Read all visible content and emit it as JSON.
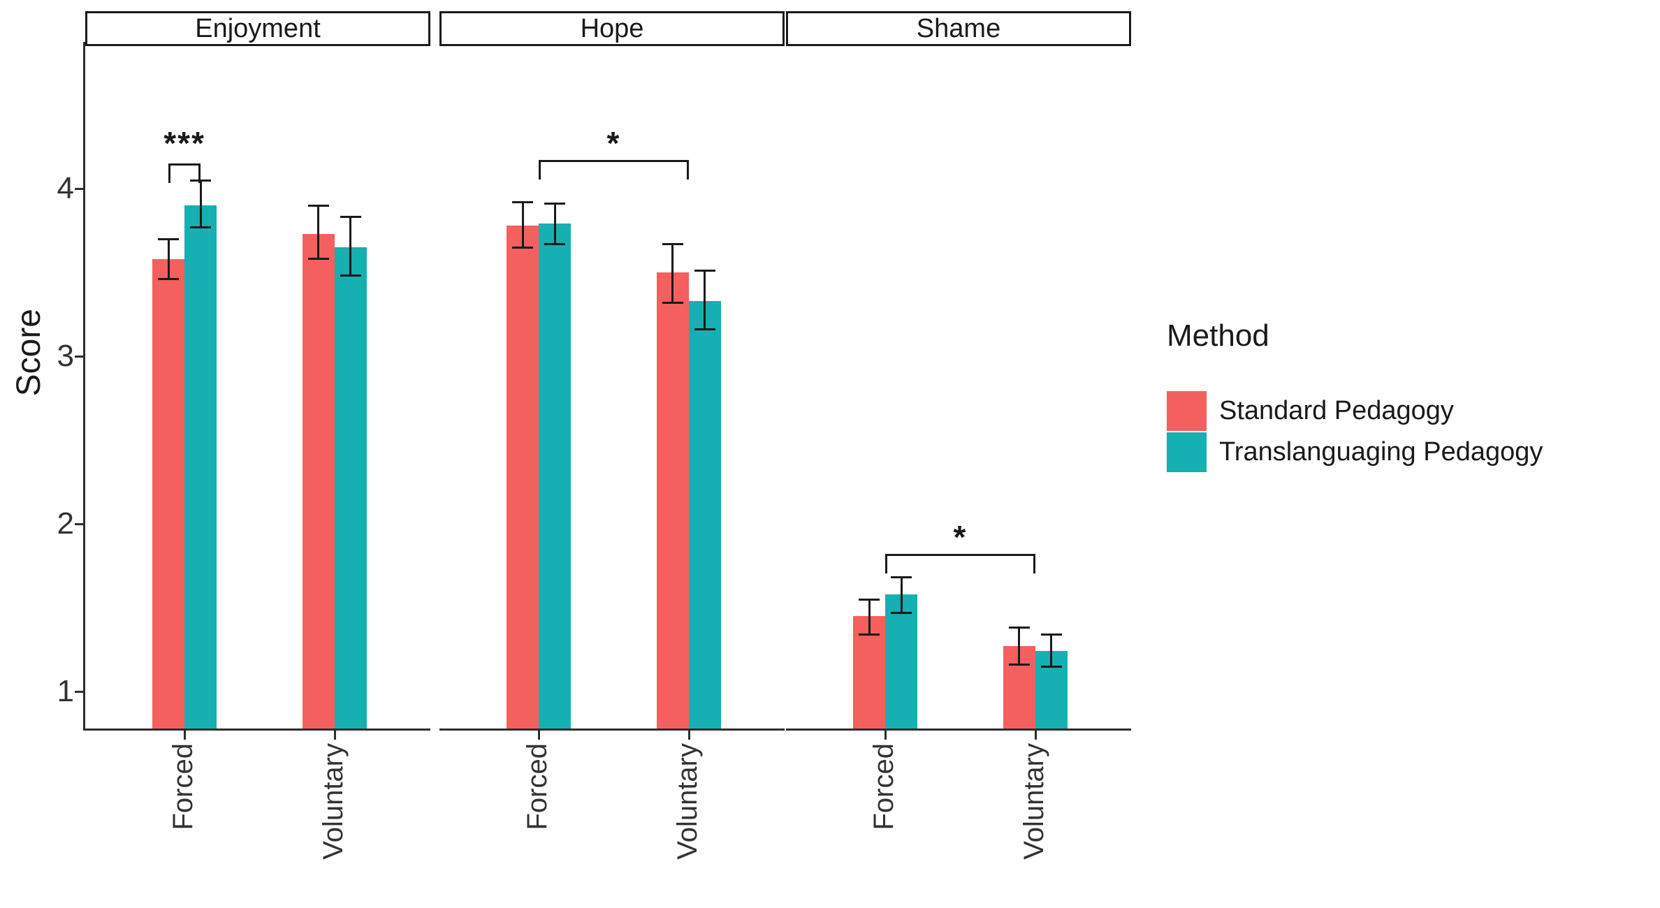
{
  "chart_data": {
    "type": "bar",
    "title": "",
    "ylabel": "Score",
    "xlabel": "",
    "facets": [
      "Enjoyment",
      "Hope",
      "Shame"
    ],
    "categories": [
      "Forced",
      "Voluntary"
    ],
    "yticks": [
      1,
      2,
      3,
      4
    ],
    "ylim_visible": [
      0.78,
      5.1
    ],
    "grid": false,
    "error_bars": "shown",
    "legend_position": "right",
    "legend": {
      "title": "Method",
      "items": [
        {
          "label": "Standard Pedagogy",
          "color": "#F3605D"
        },
        {
          "label": "Translanguaging Pedagogy",
          "color": "#16B0B2"
        }
      ]
    },
    "series": [
      {
        "name": "Standard Pedagogy",
        "color": "#F3605D",
        "points": [
          {
            "facet": "Enjoyment",
            "category": "Forced",
            "value": 3.58,
            "ci_low": 3.46,
            "ci_high": 3.7
          },
          {
            "facet": "Enjoyment",
            "category": "Voluntary",
            "value": 3.73,
            "ci_low": 3.58,
            "ci_high": 3.9
          },
          {
            "facet": "Hope",
            "category": "Forced",
            "value": 3.78,
            "ci_low": 3.65,
            "ci_high": 3.92
          },
          {
            "facet": "Hope",
            "category": "Voluntary",
            "value": 3.5,
            "ci_low": 3.32,
            "ci_high": 3.67
          },
          {
            "facet": "Shame",
            "category": "Forced",
            "value": 1.45,
            "ci_low": 1.34,
            "ci_high": 1.55
          },
          {
            "facet": "Shame",
            "category": "Voluntary",
            "value": 1.27,
            "ci_low": 1.16,
            "ci_high": 1.38
          }
        ]
      },
      {
        "name": "Translanguaging Pedagogy",
        "color": "#16B0B2",
        "points": [
          {
            "facet": "Enjoyment",
            "category": "Forced",
            "value": 3.9,
            "ci_low": 3.77,
            "ci_high": 4.05
          },
          {
            "facet": "Enjoyment",
            "category": "Voluntary",
            "value": 3.65,
            "ci_low": 3.48,
            "ci_high": 3.83
          },
          {
            "facet": "Hope",
            "category": "Forced",
            "value": 3.79,
            "ci_low": 3.67,
            "ci_high": 3.91
          },
          {
            "facet": "Hope",
            "category": "Voluntary",
            "value": 3.33,
            "ci_low": 3.16,
            "ci_high": 3.51
          },
          {
            "facet": "Shame",
            "category": "Forced",
            "value": 1.58,
            "ci_low": 1.47,
            "ci_high": 1.68
          },
          {
            "facet": "Shame",
            "category": "Voluntary",
            "value": 1.24,
            "ci_low": 1.15,
            "ci_high": 1.34
          }
        ]
      }
    ],
    "significance": [
      {
        "facet": "Enjoyment",
        "span": "pair",
        "category": "Forced",
        "label": "***",
        "bracket_score": 4.15,
        "label_score": 4.3
      },
      {
        "facet": "Hope",
        "span": "categories",
        "from": "Forced",
        "to": "Voluntary",
        "label": "*",
        "bracket_score": 4.17,
        "label_score": 4.3
      },
      {
        "facet": "Shame",
        "span": "categories",
        "from": "Forced",
        "to": "Voluntary",
        "label": "*",
        "bracket_score": 1.82,
        "label_score": 1.95
      }
    ]
  }
}
